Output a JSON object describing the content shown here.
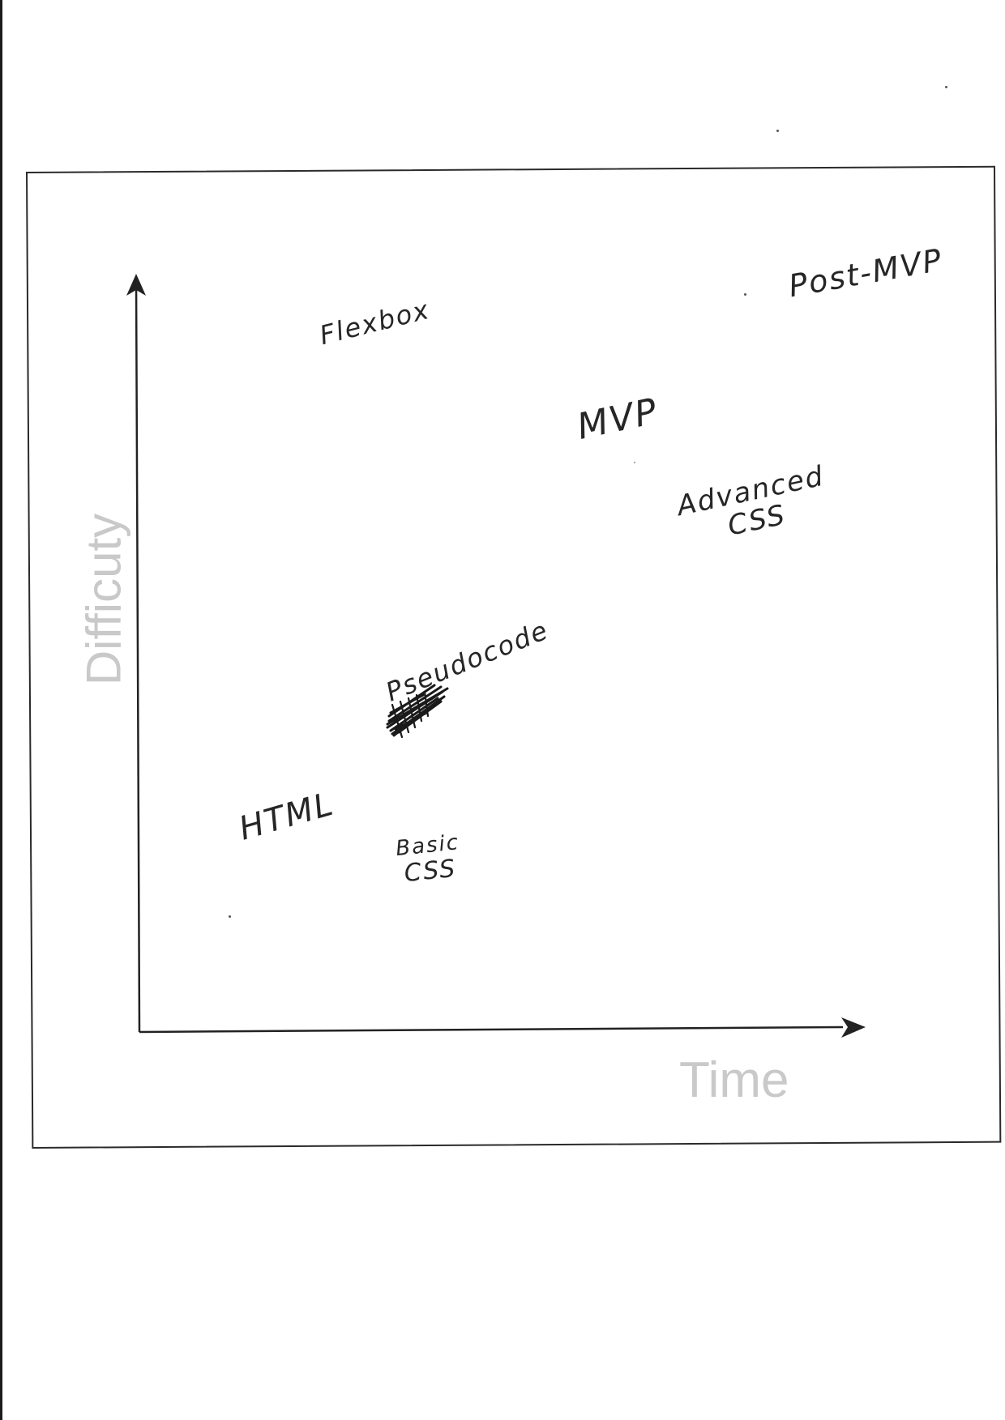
{
  "axes": {
    "y_label": "Difficuty",
    "x_label": "Time"
  },
  "topics": {
    "flexbox": "Flexbox",
    "post_mvp": "Post-MVP",
    "mvp": "MVP",
    "advanced_css_line1": "Advanced",
    "advanced_css_line2": "CSS",
    "pseudocode": "Pseudocode",
    "html": "HTML",
    "basic_css_line1": "Basic",
    "basic_css_line2": "CSS"
  },
  "colors": {
    "ink": "#262626",
    "axis_title": "#c9c9c9",
    "frame": "#2a2a2a"
  }
}
